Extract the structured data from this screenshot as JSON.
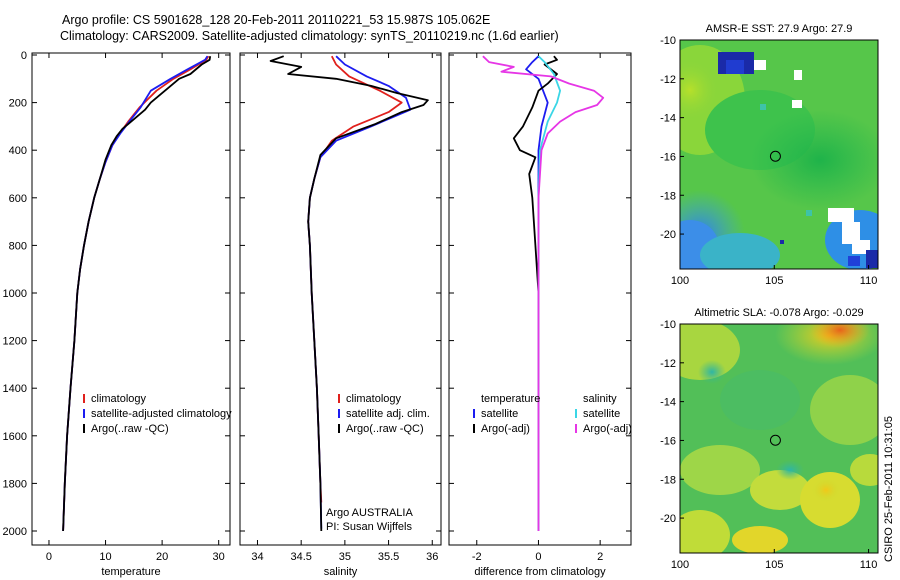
{
  "header": {
    "line1": "Argo profile: CS 5901628_128 20-Feb-2011 20110221_53 15.987S 105.062E",
    "line2": "Climatology: CARS2009. Satellite-adjusted climatology: synTS_20110219.nc (1.6d earlier)"
  },
  "colors": {
    "climatology": "#e0201c",
    "satellite": "#1c1cf0",
    "argo": "#000000",
    "satellite_cyan": "#3ad6e6",
    "argo_magenta": "#e636e6"
  },
  "chart_data": [
    {
      "type": "line",
      "id": "temperature",
      "xlabel": "temperature",
      "ylabel": "",
      "xlim": [
        -3,
        32
      ],
      "ylim": [
        2060,
        0
      ],
      "xticks": [
        "0",
        "10",
        "20",
        "30"
      ],
      "yticks": [
        "0",
        "200",
        "400",
        "600",
        "800",
        "1000",
        "1200",
        "1400",
        "1600",
        "1800",
        "2000"
      ],
      "legend": [
        "climatology",
        "satellite-adjusted climatology",
        "Argo(..raw -QC)"
      ],
      "series": [
        {
          "name": "climatology",
          "color": "#e0201c",
          "points": [
            [
              28.2,
              5
            ],
            [
              27.8,
              20
            ],
            [
              25,
              60
            ],
            [
              22,
              100
            ],
            [
              19,
              150
            ],
            [
              16,
              220
            ],
            [
              14,
              280
            ],
            [
              12.5,
              330
            ],
            [
              11.2,
              380
            ],
            [
              10,
              450
            ],
            [
              9,
              520
            ],
            [
              8,
              600
            ],
            [
              7,
              700
            ],
            [
              6.2,
              800
            ],
            [
              5.5,
              900
            ],
            [
              5,
              1000
            ],
            [
              4.5,
              1200
            ],
            [
              3.8,
              1400
            ],
            [
              3.2,
              1600
            ],
            [
              2.8,
              1800
            ],
            [
              2.5,
              2000
            ]
          ]
        },
        {
          "name": "satellite",
          "color": "#1c1cf0",
          "points": [
            [
              28,
              5
            ],
            [
              27.6,
              20
            ],
            [
              24.5,
              60
            ],
            [
              21.5,
              100
            ],
            [
              18,
              150
            ],
            [
              16.2,
              220
            ],
            [
              14.2,
              280
            ],
            [
              12.6,
              330
            ],
            [
              11.2,
              380
            ],
            [
              10,
              450
            ],
            [
              9,
              520
            ],
            [
              8,
              600
            ],
            [
              7,
              700
            ],
            [
              6.2,
              800
            ],
            [
              5.5,
              900
            ],
            [
              5,
              1000
            ],
            [
              4.5,
              1200
            ],
            [
              3.8,
              1400
            ],
            [
              3.2,
              1600
            ],
            [
              2.8,
              1800
            ],
            [
              2.5,
              2000
            ]
          ]
        },
        {
          "name": "argo",
          "color": "#000000",
          "points": [
            [
              28.5,
              5
            ],
            [
              28.4,
              20
            ],
            [
              27,
              40
            ],
            [
              25,
              80
            ],
            [
              23,
              100
            ],
            [
              21,
              140
            ],
            [
              20,
              160
            ],
            [
              18,
              200
            ],
            [
              17,
              230
            ],
            [
              15,
              270
            ],
            [
              13,
              310
            ],
            [
              12,
              340
            ],
            [
              11,
              380
            ],
            [
              10,
              440
            ],
            [
              9,
              520
            ],
            [
              8,
              600
            ],
            [
              7,
              700
            ],
            [
              6.2,
              800
            ],
            [
              5.5,
              900
            ],
            [
              5,
              1000
            ],
            [
              4.5,
              1200
            ],
            [
              3.8,
              1400
            ],
            [
              3.2,
              1600
            ],
            [
              2.8,
              1800
            ],
            [
              2.5,
              2000
            ]
          ]
        }
      ]
    },
    {
      "type": "line",
      "id": "salinity",
      "xlabel": "salinity",
      "ylabel": "",
      "xlim": [
        33.8,
        36.1
      ],
      "ylim": [
        2060,
        0
      ],
      "xticks": [
        "34",
        "34.5",
        "35",
        "35.5",
        "36"
      ],
      "legend": [
        "climatology",
        "satellite adj. clim.",
        "Argo(..raw -QC)"
      ],
      "annotations": [
        "Argo AUSTRALIA",
        "PI: Susan Wijffels"
      ],
      "series": [
        {
          "name": "climatology",
          "color": "#e0201c",
          "points": [
            [
              34.85,
              5
            ],
            [
              34.9,
              40
            ],
            [
              35.05,
              90
            ],
            [
              35.4,
              150
            ],
            [
              35.65,
              200
            ],
            [
              35.5,
              240
            ],
            [
              35.1,
              300
            ],
            [
              34.85,
              360
            ],
            [
              34.72,
              430
            ],
            [
              34.65,
              520
            ],
            [
              34.6,
              600
            ],
            [
              34.58,
              700
            ],
            [
              34.6,
              800
            ],
            [
              34.62,
              1000
            ],
            [
              34.65,
              1200
            ],
            [
              34.68,
              1400
            ],
            [
              34.7,
              1600
            ],
            [
              34.72,
              1800
            ],
            [
              34.73,
              1880
            ]
          ]
        },
        {
          "name": "satellite",
          "color": "#1c1cf0",
          "points": [
            [
              34.9,
              5
            ],
            [
              35,
              40
            ],
            [
              35.25,
              90
            ],
            [
              35.5,
              130
            ],
            [
              35.7,
              180
            ],
            [
              35.75,
              230
            ],
            [
              35.3,
              300
            ],
            [
              34.9,
              360
            ],
            [
              34.72,
              430
            ],
            [
              34.65,
              520
            ],
            [
              34.6,
              600
            ],
            [
              34.58,
              700
            ],
            [
              34.6,
              800
            ],
            [
              34.62,
              1000
            ],
            [
              34.65,
              1200
            ],
            [
              34.68,
              1400
            ],
            [
              34.7,
              1600
            ],
            [
              34.72,
              1800
            ],
            [
              34.73,
              1990
            ]
          ]
        },
        {
          "name": "argo",
          "color": "#000000",
          "points": [
            [
              34.3,
              5
            ],
            [
              34.15,
              25
            ],
            [
              34.5,
              50
            ],
            [
              34.35,
              80
            ],
            [
              34.9,
              100
            ],
            [
              35.3,
              130
            ],
            [
              35.6,
              160
            ],
            [
              35.95,
              190
            ],
            [
              35.9,
              210
            ],
            [
              35.65,
              240
            ],
            [
              35.35,
              290
            ],
            [
              34.9,
              350
            ],
            [
              34.72,
              420
            ],
            [
              34.65,
              520
            ],
            [
              34.6,
              600
            ],
            [
              34.58,
              700
            ],
            [
              34.6,
              800
            ],
            [
              34.62,
              1000
            ],
            [
              34.65,
              1200
            ],
            [
              34.68,
              1400
            ],
            [
              34.7,
              1600
            ],
            [
              34.72,
              1800
            ],
            [
              34.73,
              2000
            ]
          ]
        }
      ]
    },
    {
      "type": "line",
      "id": "difference",
      "xlabel": "difference from climatology",
      "ylabel": "",
      "xlim": [
        -2.9,
        3
      ],
      "ylim": [
        2060,
        0
      ],
      "xticks": [
        "-2",
        "0",
        "2"
      ],
      "legend_temperature": [
        "temperature",
        "satellite",
        "Argo(-adj)"
      ],
      "legend_salinity": [
        "salinity",
        "satellite",
        "Argo(-adj)"
      ],
      "series": [
        {
          "name": "temp-satellite",
          "color": "#1c1cf0",
          "points": [
            [
              0,
              5
            ],
            [
              -0.2,
              30
            ],
            [
              -0.4,
              60
            ],
            [
              0,
              100
            ],
            [
              0.3,
              200
            ],
            [
              0.1,
              300
            ],
            [
              0,
              400
            ],
            [
              0,
              600
            ],
            [
              0,
              1000
            ],
            [
              0,
              1500
            ],
            [
              0,
              2000
            ]
          ]
        },
        {
          "name": "temp-argo",
          "color": "#000000",
          "points": [
            [
              0.5,
              5
            ],
            [
              0.6,
              20
            ],
            [
              0.2,
              40
            ],
            [
              0.6,
              80
            ],
            [
              0.3,
              120
            ],
            [
              0,
              150
            ],
            [
              -0.2,
              220
            ],
            [
              -0.5,
              300
            ],
            [
              -0.8,
              350
            ],
            [
              -0.6,
              400
            ],
            [
              -0.1,
              430
            ],
            [
              -0.3,
              500
            ],
            [
              -0.2,
              600
            ],
            [
              -0.1,
              800
            ],
            [
              0,
              1000
            ],
            [
              0,
              1500
            ],
            [
              0,
              2000
            ]
          ]
        },
        {
          "name": "sal-satellite",
          "color": "#3ad6e6",
          "points": [
            [
              0,
              5
            ],
            [
              0.2,
              30
            ],
            [
              0.5,
              80
            ],
            [
              0.7,
              150
            ],
            [
              0.6,
              200
            ],
            [
              0.3,
              280
            ],
            [
              0.05,
              400
            ],
            [
              0,
              600
            ],
            [
              0,
              1000
            ],
            [
              0,
              1500
            ],
            [
              0,
              2000
            ]
          ]
        },
        {
          "name": "sal-argo",
          "color": "#e636e6",
          "points": [
            [
              -1.8,
              5
            ],
            [
              -1.6,
              30
            ],
            [
              -0.8,
              50
            ],
            [
              -1.2,
              70
            ],
            [
              0.4,
              90
            ],
            [
              1,
              120
            ],
            [
              1.8,
              150
            ],
            [
              2.1,
              180
            ],
            [
              1.9,
              210
            ],
            [
              1.2,
              240
            ],
            [
              0.7,
              280
            ],
            [
              0.3,
              330
            ],
            [
              0.1,
              400
            ],
            [
              0,
              600
            ],
            [
              0,
              1000
            ],
            [
              0,
              1500
            ],
            [
              0,
              2000
            ]
          ]
        }
      ]
    },
    {
      "type": "heatmap",
      "id": "sst-map",
      "title": "AMSR-E SST: 27.9 Argo: 27.9",
      "xlim": [
        100,
        110.5
      ],
      "ylim": [
        -21.8,
        -10
      ],
      "xticks": [
        "100",
        "105",
        "110"
      ],
      "yticks": [
        "-10",
        "-12",
        "-14",
        "-16",
        "-18",
        "-20"
      ],
      "marker": [
        105.06,
        -15.99
      ]
    },
    {
      "type": "heatmap",
      "id": "sla-map",
      "title": "Altimetric SLA: -0.078 Argo: -0.029",
      "xlim": [
        100,
        110.5
      ],
      "ylim": [
        -21.8,
        -10
      ],
      "xticks": [
        "100",
        "105",
        "110"
      ],
      "yticks": [
        "-10",
        "-12",
        "-14",
        "-16",
        "-18",
        "-20"
      ],
      "marker": [
        105.06,
        -15.99
      ]
    }
  ],
  "footer": {
    "stamp": "CSIRO 25-Feb-2011 10:31:05"
  }
}
